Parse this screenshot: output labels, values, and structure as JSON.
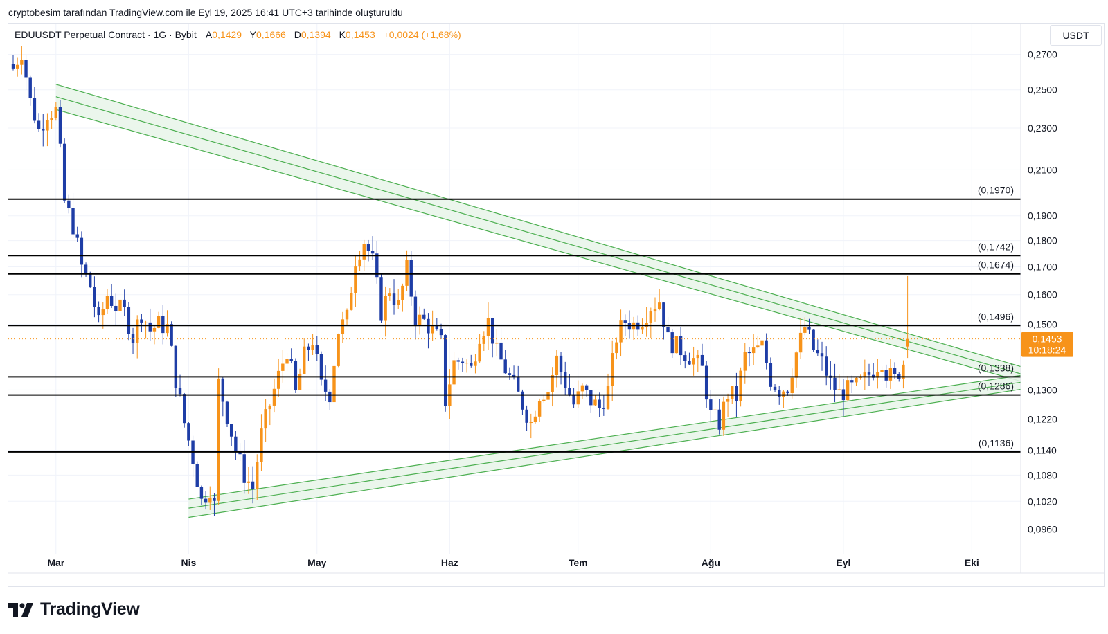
{
  "header": {
    "caption": "cryptobesim tarafından TradingView.com ile Eyl 19, 2025 16:41 UTC+3 tarihinde oluşturuldu"
  },
  "legend": {
    "symbol": "EDUUSDT Perpetual Contract · 1G · Bybit",
    "open_label": "A",
    "open": "0,1429",
    "high_label": "Y",
    "high": "0,1666",
    "low_label": "D",
    "low": "0,1394",
    "close_label": "K",
    "close": "0,1453",
    "change": "+0,0024 (+1,68%)"
  },
  "currency": "USDT",
  "price_tag": {
    "price": "0,1453",
    "countdown": "10:18:24"
  },
  "brand": {
    "name": "TradingView"
  },
  "colors": {
    "up": "#f7931a",
    "down": "#1e3da6",
    "channel": "#4caf50",
    "channel_fill": "#e8f5e9",
    "level": "#000000"
  },
  "chart_data": {
    "type": "candlestick",
    "interval": "1D",
    "yscale": "log",
    "ylim": [
      0.091,
      0.2888
    ],
    "y_ticks": [
      "0,2700",
      "0,2500",
      "0,2300",
      "0,2100",
      "0,1900",
      "0,1800",
      "0,1700",
      "0,1600",
      "0,1500",
      "0,1300",
      "0,1220",
      "0,1140",
      "0,1080",
      "0,1020",
      "0,0960"
    ],
    "x_ticks": [
      {
        "label": "Mar",
        "day": 10
      },
      {
        "label": "Nis",
        "day": 41
      },
      {
        "label": "May",
        "day": 71
      },
      {
        "label": "Haz",
        "day": 102
      },
      {
        "label": "Tem",
        "day": 132
      },
      {
        "label": "Ağu",
        "day": 163
      },
      {
        "label": "Eyl",
        "day": 194
      },
      {
        "label": "Eki",
        "day": 224
      }
    ],
    "levels": [
      {
        "value": 0.197,
        "label": "(0,1970)"
      },
      {
        "value": 0.1742,
        "label": "(0,1742)"
      },
      {
        "value": 0.1674,
        "label": "(0,1674)"
      },
      {
        "value": 0.1496,
        "label": "(0,1496)"
      },
      {
        "value": 0.1338,
        "label": "(0,1338)"
      },
      {
        "value": 0.1286,
        "label": "(0,1286)"
      },
      {
        "value": 0.1136,
        "label": "(0,1136)"
      }
    ],
    "upper_channel": {
      "start_day": 10,
      "end_day": 240,
      "start_top": 0.253,
      "start_bottom": 0.2395,
      "end_top": 0.1368,
      "end_bottom": 0.1325
    },
    "lower_channel": {
      "start_day": 41,
      "end_day": 240,
      "start_top": 0.1025,
      "start_bottom": 0.0985,
      "end_top": 0.1342,
      "end_bottom": 0.1302
    },
    "current_price": 0.1453,
    "anchors": [
      [
        0,
        0.262
      ],
      [
        2,
        0.272
      ],
      [
        4,
        0.244
      ],
      [
        6,
        0.229
      ],
      [
        8,
        0.238
      ],
      [
        10,
        0.239
      ],
      [
        12,
        0.196
      ],
      [
        14,
        0.186
      ],
      [
        16,
        0.17
      ],
      [
        18,
        0.163
      ],
      [
        20,
        0.15
      ],
      [
        22,
        0.16
      ],
      [
        24,
        0.156
      ],
      [
        26,
        0.154
      ],
      [
        28,
        0.146
      ],
      [
        30,
        0.154
      ],
      [
        32,
        0.148
      ],
      [
        34,
        0.15
      ],
      [
        36,
        0.149
      ],
      [
        38,
        0.133
      ],
      [
        40,
        0.121
      ],
      [
        42,
        0.112
      ],
      [
        44,
        0.102
      ],
      [
        46,
        0.105
      ],
      [
        47,
        0.101
      ],
      [
        48,
        0.132
      ],
      [
        50,
        0.123
      ],
      [
        52,
        0.114
      ],
      [
        54,
        0.108
      ],
      [
        56,
        0.105
      ],
      [
        58,
        0.118
      ],
      [
        60,
        0.126
      ],
      [
        62,
        0.134
      ],
      [
        64,
        0.142
      ],
      [
        66,
        0.129
      ],
      [
        68,
        0.14
      ],
      [
        70,
        0.145
      ],
      [
        72,
        0.131
      ],
      [
        74,
        0.129
      ],
      [
        76,
        0.148
      ],
      [
        78,
        0.152
      ],
      [
        80,
        0.173
      ],
      [
        82,
        0.18
      ],
      [
        84,
        0.172
      ],
      [
        86,
        0.154
      ],
      [
        88,
        0.162
      ],
      [
        90,
        0.156
      ],
      [
        92,
        0.169
      ],
      [
        94,
        0.152
      ],
      [
        96,
        0.151
      ],
      [
        98,
        0.148
      ],
      [
        100,
        0.144
      ],
      [
        101,
        0.127
      ],
      [
        103,
        0.138
      ],
      [
        105,
        0.139
      ],
      [
        107,
        0.136
      ],
      [
        109,
        0.147
      ],
      [
        111,
        0.151
      ],
      [
        113,
        0.141
      ],
      [
        115,
        0.136
      ],
      [
        117,
        0.131
      ],
      [
        119,
        0.126
      ],
      [
        121,
        0.121
      ],
      [
        123,
        0.129
      ],
      [
        125,
        0.13
      ],
      [
        127,
        0.139
      ],
      [
        129,
        0.132
      ],
      [
        131,
        0.126
      ],
      [
        133,
        0.13
      ],
      [
        135,
        0.127
      ],
      [
        137,
        0.125
      ],
      [
        139,
        0.13
      ],
      [
        141,
        0.146
      ],
      [
        143,
        0.151
      ],
      [
        145,
        0.15
      ],
      [
        147,
        0.152
      ],
      [
        149,
        0.156
      ],
      [
        151,
        0.158
      ],
      [
        153,
        0.145
      ],
      [
        155,
        0.143
      ],
      [
        157,
        0.141
      ],
      [
        159,
        0.139
      ],
      [
        161,
        0.136
      ],
      [
        163,
        0.123
      ],
      [
        165,
        0.121
      ],
      [
        167,
        0.129
      ],
      [
        169,
        0.128
      ],
      [
        171,
        0.14
      ],
      [
        173,
        0.141
      ],
      [
        175,
        0.143
      ],
      [
        177,
        0.133
      ],
      [
        179,
        0.13
      ],
      [
        181,
        0.131
      ],
      [
        183,
        0.141
      ],
      [
        185,
        0.149
      ],
      [
        187,
        0.142
      ],
      [
        189,
        0.138
      ],
      [
        191,
        0.132
      ],
      [
        193,
        0.129
      ],
      [
        195,
        0.13
      ],
      [
        197,
        0.131
      ],
      [
        199,
        0.133
      ],
      [
        201,
        0.136
      ],
      [
        203,
        0.139
      ],
      [
        204,
        0.135
      ],
      [
        206,
        0.133
      ],
      [
        208,
        0.138
      ],
      [
        209,
        0.1453
      ]
    ],
    "last_candle": {
      "open": 0.1429,
      "high": 0.1666,
      "low": 0.1394,
      "close": 0.1453
    }
  }
}
